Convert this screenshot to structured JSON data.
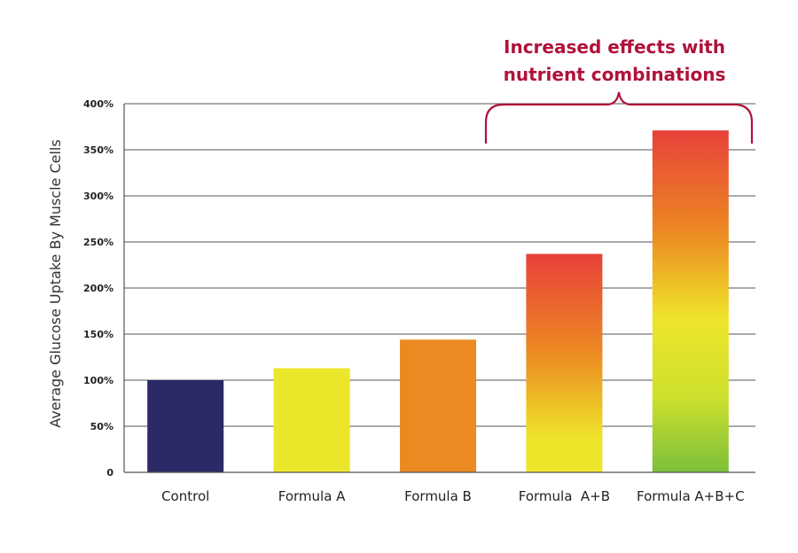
{
  "chart_data": {
    "type": "bar",
    "categories": [
      "Control",
      "Formula A",
      "Formula B",
      "Formula  A+B",
      "Formula A+B+C"
    ],
    "values": [
      100,
      113,
      144,
      237,
      371
    ],
    "ylabel": "Average Glucose Uptake By Muscle Cells",
    "ylim": [
      0,
      400
    ],
    "yticks": [
      {
        "value": 0,
        "label": "0"
      },
      {
        "value": 50,
        "label": "50%"
      },
      {
        "value": 100,
        "label": "100%"
      },
      {
        "value": 150,
        "label": "150%"
      },
      {
        "value": 200,
        "label": "200%"
      },
      {
        "value": 250,
        "label": "250%"
      },
      {
        "value": 300,
        "label": "300%"
      },
      {
        "value": 350,
        "label": "350%"
      },
      {
        "value": 400,
        "label": "400%"
      }
    ],
    "grid": true,
    "annotation": {
      "lines": [
        "Increased effects with",
        "nutrient combinations"
      ],
      "spans": [
        "Formula  A+B",
        "Formula A+B+C"
      ]
    },
    "colors": {
      "control": "#2b2a66",
      "formula_a": "#ece62a",
      "formula_b": "#ec8a22",
      "gradient_ab": [
        "#e8413a",
        "#ec8a22",
        "#eee52a"
      ],
      "gradient_abc": [
        "#e8413a",
        "#ec8a22",
        "#eee52a",
        "#7cbf3a"
      ],
      "annotation": "#b0123a"
    }
  }
}
